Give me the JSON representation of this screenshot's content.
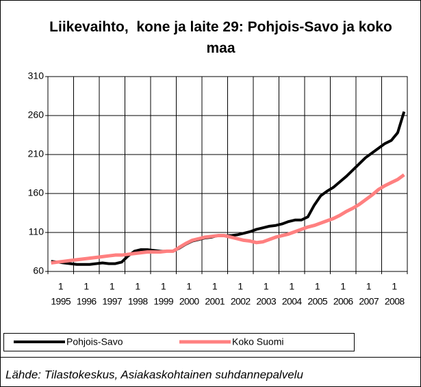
{
  "chart_data": {
    "type": "line",
    "title": "Liikevaihto,  kone ja laite 29: Pohjois-Savo ja koko maa",
    "categories": [
      "1",
      null,
      null,
      null,
      "1",
      null,
      null,
      null,
      "1",
      null,
      null,
      null,
      "1",
      null,
      null,
      null,
      "1",
      null,
      null,
      null,
      "1",
      null,
      null,
      null,
      "1",
      null,
      null,
      null,
      "1",
      null,
      null,
      null,
      "1",
      null,
      null,
      null,
      "1",
      null,
      null,
      null,
      "1",
      null,
      null,
      null,
      "1",
      null,
      null,
      null,
      "1",
      null,
      null,
      null,
      "1",
      null,
      null,
      null
    ],
    "year_labels": [
      "1995",
      "1996",
      "1997",
      "1998",
      "1999",
      "2000",
      "2001",
      "2002",
      "2003",
      "2004",
      "2005",
      "2006",
      "2007",
      "2008"
    ],
    "series": [
      {
        "name": "Pohjois-Savo",
        "color": "#000000",
        "values": [
          73,
          72,
          71,
          70,
          69,
          69,
          69,
          70,
          71,
          70,
          70,
          72,
          80,
          86,
          88,
          88,
          87,
          86,
          86,
          86,
          90,
          95,
          99,
          101,
          103,
          104,
          106,
          106,
          106,
          107,
          109,
          111,
          114,
          116,
          118,
          119,
          121,
          124,
          126,
          126,
          130,
          145,
          157,
          163,
          168,
          175,
          182,
          190,
          198,
          206,
          212,
          218,
          224,
          228,
          238,
          265
        ]
      },
      {
        "name": "Koko Suomi",
        "color": "#ff8080",
        "values": [
          71,
          72,
          73,
          74,
          75,
          76,
          77,
          78,
          79,
          80,
          81,
          81,
          82,
          83,
          84,
          85,
          85,
          85,
          86,
          86,
          91,
          96,
          100,
          102,
          104,
          105,
          106,
          106,
          104,
          102,
          100,
          99,
          97,
          98,
          101,
          104,
          106,
          108,
          111,
          114,
          117,
          119,
          122,
          125,
          128,
          132,
          137,
          141,
          146,
          152,
          158,
          165,
          170,
          174,
          178,
          184
        ]
      }
    ],
    "ylim": [
      60,
      310
    ],
    "yticks": [
      60,
      110,
      160,
      210,
      260,
      310
    ],
    "grid": true,
    "source": "Lähde: Tilastokeskus, Asiakaskohtainen suhdannepalvelu"
  }
}
